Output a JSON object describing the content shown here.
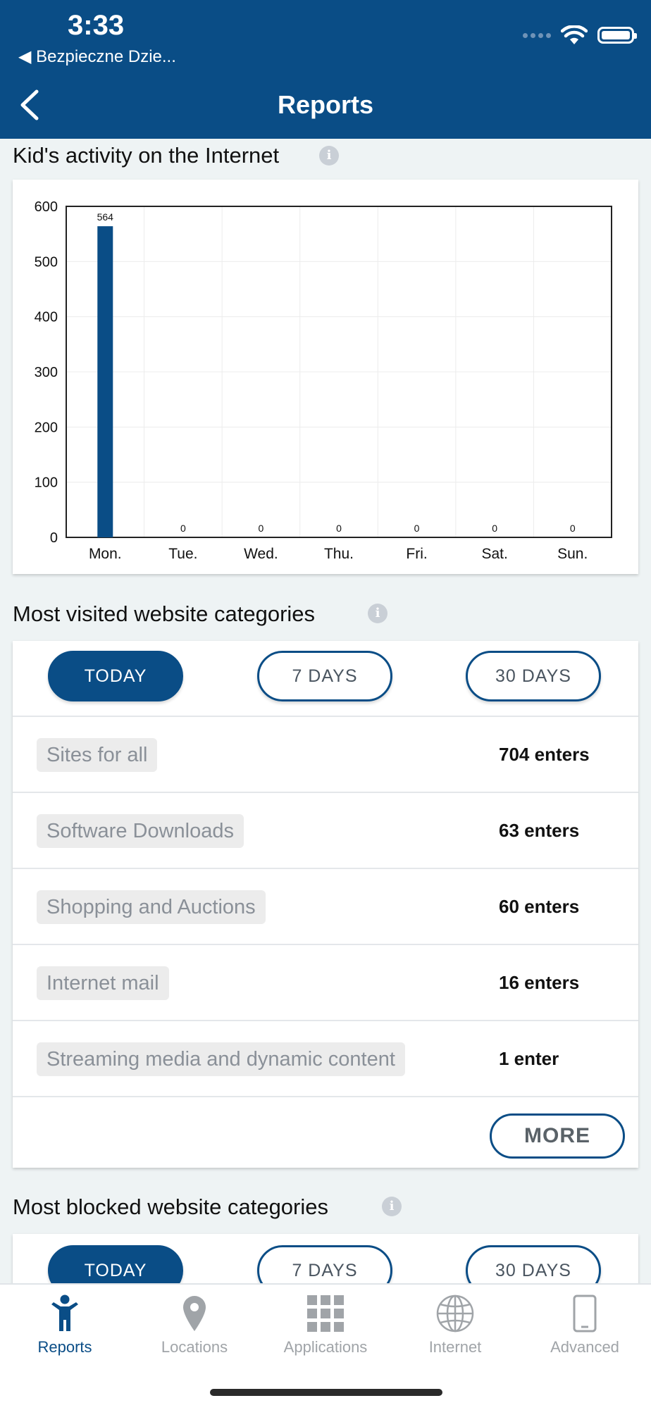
{
  "status_bar": {
    "time": "3:33",
    "back_app": "◀ Bezpieczne Dzie..."
  },
  "header": {
    "title": "Reports"
  },
  "activity": {
    "title": "Kid's activity on the Internet",
    "chart_data": {
      "type": "bar",
      "categories": [
        "Mon.",
        "Tue.",
        "Wed.",
        "Thu.",
        "Fri.",
        "Sat.",
        "Sun."
      ],
      "values": [
        564,
        0,
        0,
        0,
        0,
        0,
        0
      ],
      "yticks": [
        0,
        100,
        200,
        300,
        400,
        500,
        600
      ],
      "ylim": [
        0,
        600
      ],
      "grid": true,
      "bar_color": "#0a4d86"
    }
  },
  "visited": {
    "title": "Most visited website categories",
    "periods": [
      "TODAY",
      "7 DAYS",
      "30 DAYS"
    ],
    "rows": [
      {
        "category": "Sites for all",
        "count": "704 enters"
      },
      {
        "category": "Software Downloads",
        "count": "63 enters"
      },
      {
        "category": "Shopping and Auctions",
        "count": "60 enters"
      },
      {
        "category": "Internet mail",
        "count": "16 enters"
      },
      {
        "category": "Streaming media and dynamic content",
        "count": "1 enter"
      }
    ],
    "more_label": "MORE"
  },
  "blocked": {
    "title": "Most blocked website categories",
    "periods": [
      "TODAY",
      "7 DAYS",
      "30 DAYS"
    ]
  },
  "tabs": [
    {
      "label": "Reports",
      "icon": "child-icon",
      "active": true
    },
    {
      "label": "Locations",
      "icon": "location-pin-icon",
      "active": false
    },
    {
      "label": "Applications",
      "icon": "apps-grid-icon",
      "active": false
    },
    {
      "label": "Internet",
      "icon": "globe-icon",
      "active": false
    },
    {
      "label": "Advanced",
      "icon": "phone-icon",
      "active": false
    }
  ],
  "colors": {
    "primary": "#0a4d86",
    "background": "#eef3f4"
  }
}
